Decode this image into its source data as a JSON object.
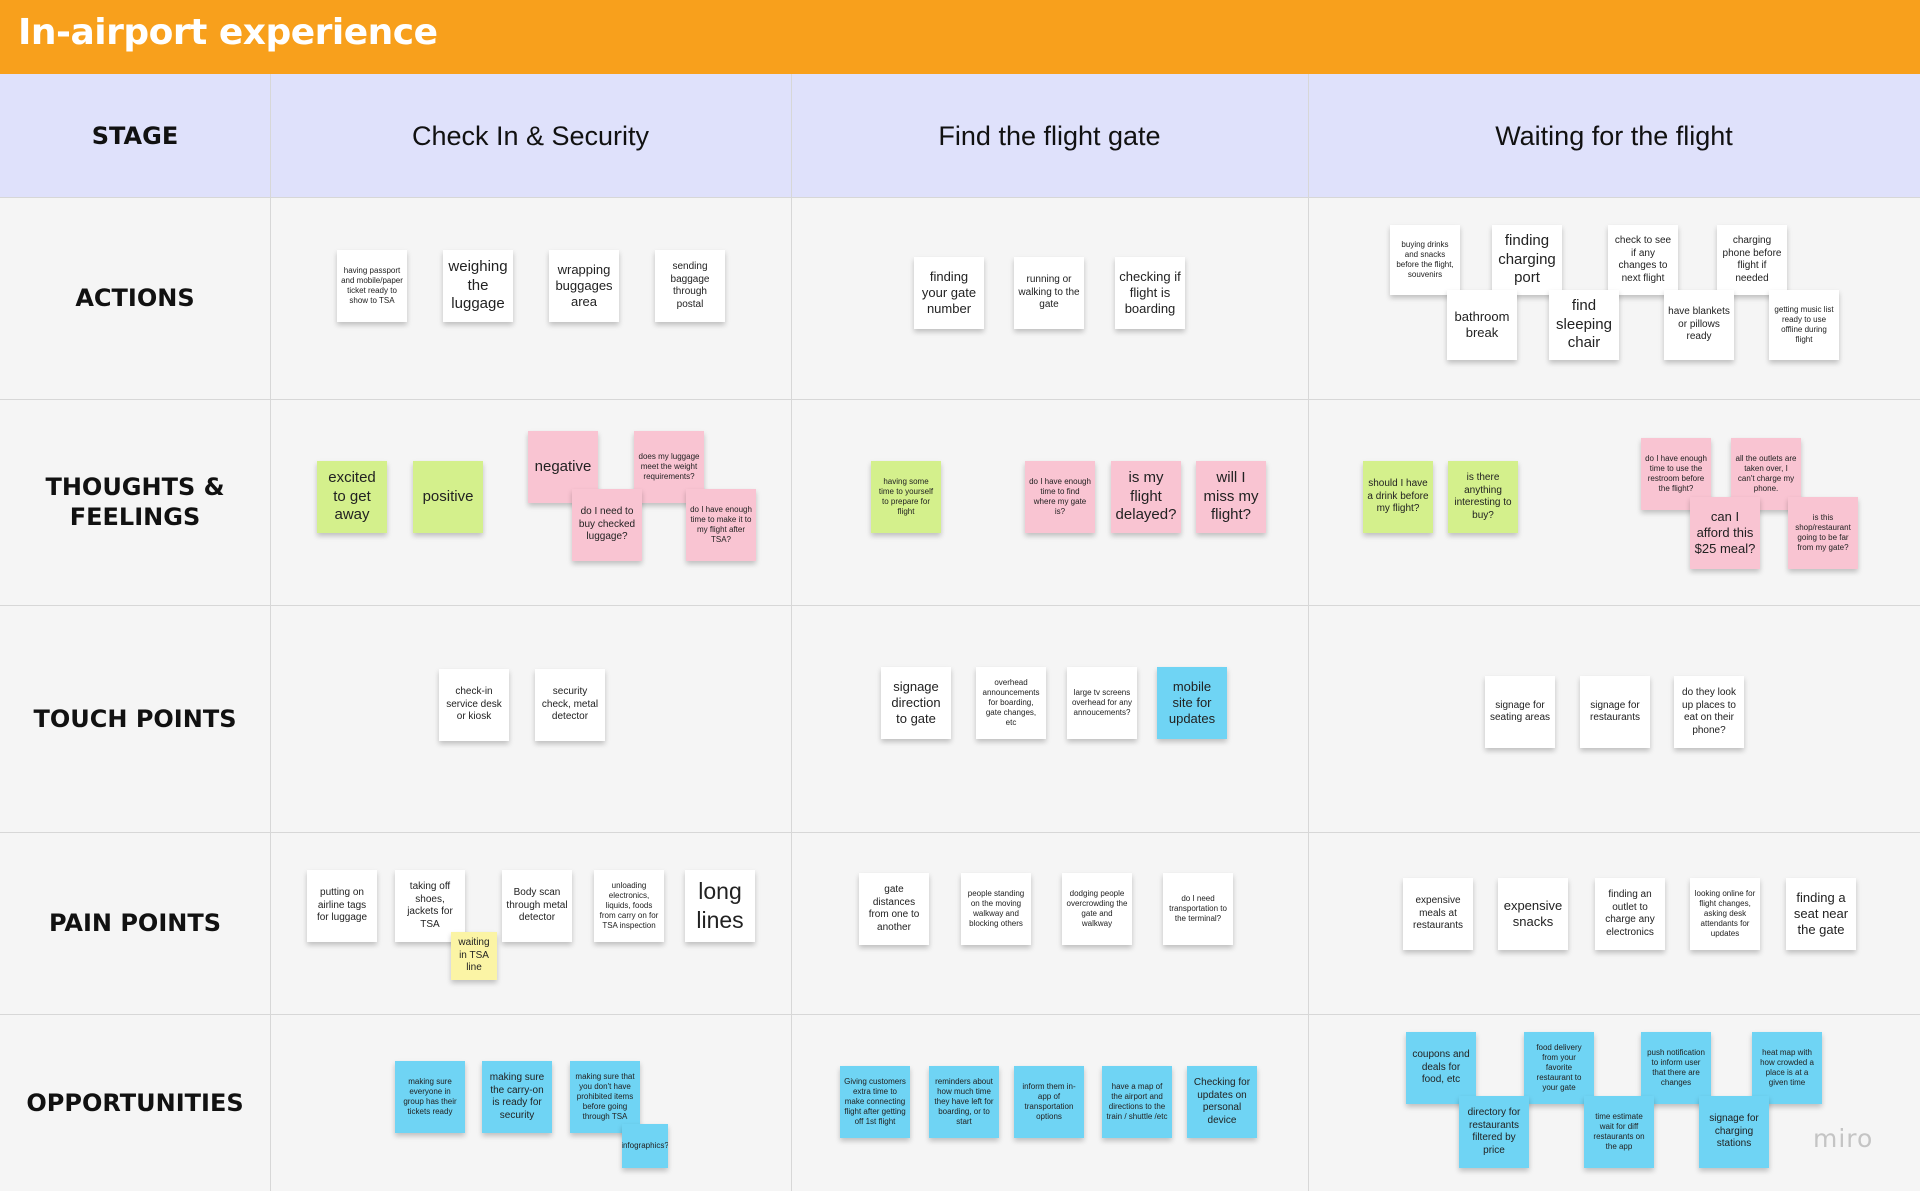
{
  "title": "In-airport experience",
  "header": {
    "stage_label": "STAGE",
    "stages": [
      "Check In & Security",
      "Find the flight gate",
      "Waiting for the flight"
    ]
  },
  "rows": [
    "ACTIONS",
    "THOUGHTS & FEELINGS",
    "TOUCH POINTS",
    "PAIN POINTS",
    "OPPORTUNITIES"
  ],
  "notes": {
    "actions": {
      "checkin": [
        "having passport and mobile/paper ticket ready to show to TSA",
        "weighing the luggage",
        "wrapping buggages area",
        "sending baggage through postal"
      ],
      "gate": [
        "finding your gate number",
        "running or walking to the gate",
        "checking if flight is boarding"
      ],
      "waiting": [
        "buying drinks and snacks before the flight, souvenirs",
        "finding charging port",
        "check to see if any changes to next flight",
        "charging phone before flight if needed",
        "bathroom break",
        "find sleeping chair",
        "have blankets or pillows ready",
        "getting music list ready to use offline during flight"
      ]
    },
    "thoughts": {
      "checkin": [
        "excited to get away",
        "positive",
        "negative",
        "does my luggage meet the weight requirements?",
        "do I need to buy checked luggage?",
        "do I have enough time to make it to my flight after TSA?"
      ],
      "gate": [
        "having some time to yourself to prepare for flight",
        "do I have enough time to find where my gate is?",
        "is my flight delayed?",
        "will I miss my flight?"
      ],
      "waiting": [
        "should I have a drink before my flight?",
        "is there anything interesting to buy?",
        "do I have enough time to use the restroom before the flight?",
        "all the outlets are taken over, I can't charge my phone.",
        "can I afford this $25 meal?",
        "is this shop/restaurant going to be far from my gate?"
      ]
    },
    "touch": {
      "checkin": [
        "check-in service desk or kiosk",
        "security check, metal detector"
      ],
      "gate": [
        "signage direction to gate",
        "overhead announcements for boarding, gate changes, etc",
        "large tv screens overhead for any annoucements?",
        "mobile site for updates"
      ],
      "waiting": [
        "signage for seating areas",
        "signage for restaurants",
        "do they look up places to eat on their phone?"
      ]
    },
    "pain": {
      "checkin": [
        "putting on airline tags for luggage",
        "taking off shoes, jackets for TSA",
        "waiting in TSA line",
        "Body scan through metal detector",
        "unloading electronics, liquids, foods from carry on for TSA inspection",
        "long lines"
      ],
      "gate": [
        "gate distances from one to another",
        "people standing on the moving walkway and blocking others",
        "dodging people overcrowding the gate and walkway",
        "do I need transportation to the terminal?"
      ],
      "waiting": [
        "expensive meals at restaurants",
        "expensive snacks",
        "finding an outlet to charge any electronics",
        "looking online for flight changes, asking desk attendants for updates",
        "finding a seat near the gate"
      ]
    },
    "opps": {
      "checkin": [
        "making sure everyone in group has their tickets ready",
        "making sure the carry-on is ready for security",
        "making sure that you don't have prohibited items before going through TSA",
        "infographics?"
      ],
      "gate": [
        "Giving customers extra time to make connecting flight after getting off 1st flight",
        "reminders about how much time they have left for boarding, or to start",
        "inform them in-app of transportation options",
        "have a map of the airport and directions to the train / shuttle /etc",
        "Checking for updates on personal device"
      ],
      "waiting": [
        "coupons and deals for food, etc",
        "food delivery from your favorite restaurant to your gate",
        "push notification to inform user that there are changes",
        "heat map with how crowded a place is at a given time",
        "directory for restaurants filtered by price",
        "time estimate wait for diff restaurants on the app",
        "signage for charging stations"
      ]
    }
  },
  "watermark": "miro",
  "colors": {
    "header_bar": "#f8a01c",
    "stage_row": "#dfe1fb",
    "note_green": "#d4f08c",
    "note_pink": "#f9c4d2",
    "note_yellow": "#fbf4a5",
    "note_blue": "#6fd4f4",
    "note_white": "#ffffff"
  }
}
